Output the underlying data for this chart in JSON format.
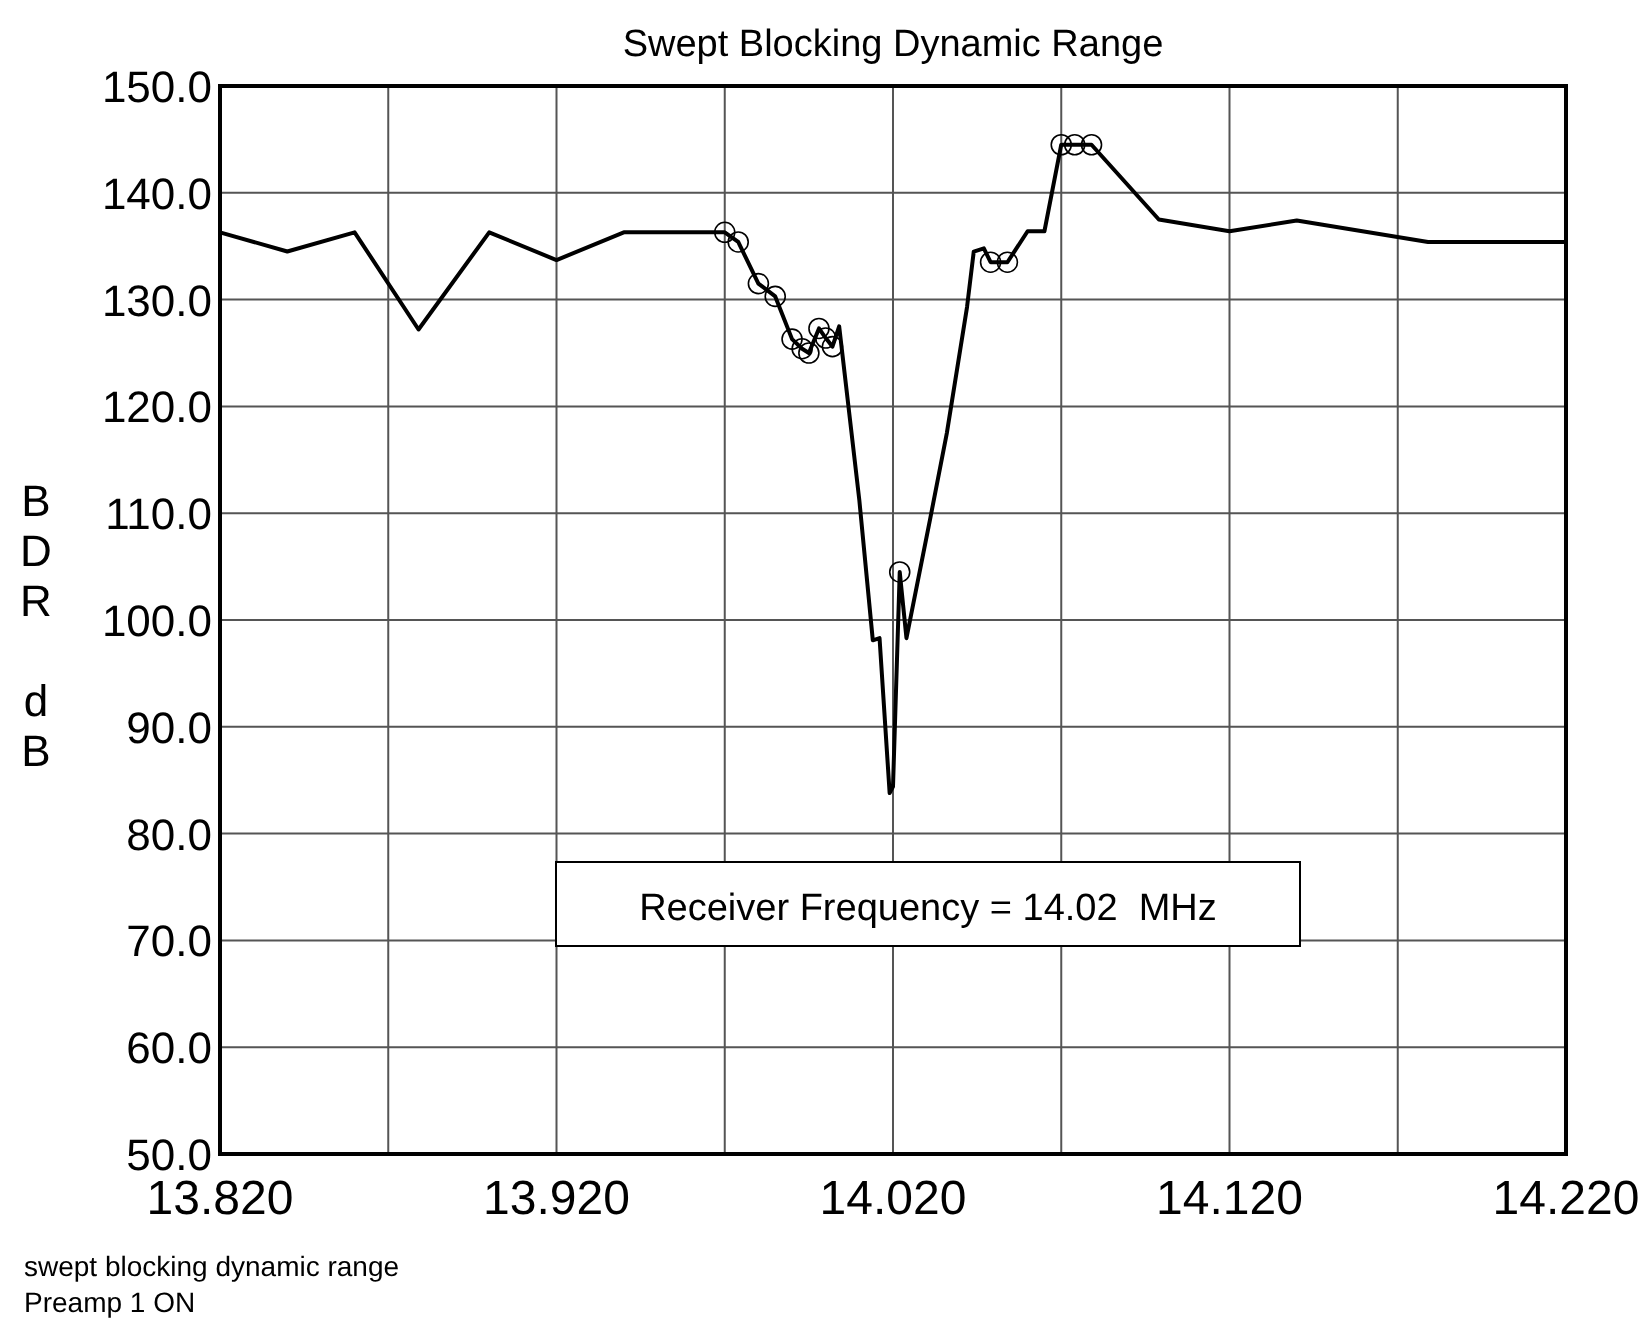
{
  "chart_data": {
    "type": "line",
    "title": "Swept Blocking Dynamic Range",
    "ylabel": "BDR dB",
    "annotations": [
      "Receiver Frequency = 14.02  MHz",
      "swept blocking dynamic range",
      "Preamp 1 ON"
    ],
    "xlim": [
      13.82,
      14.22
    ],
    "ylim": [
      50,
      150
    ],
    "xticks": [
      {
        "value": 13.82,
        "label": "13.820"
      },
      {
        "value": 13.87,
        "label": null
      },
      {
        "value": 13.92,
        "label": "13.920"
      },
      {
        "value": 13.97,
        "label": null
      },
      {
        "value": 14.02,
        "label": "14.020"
      },
      {
        "value": 14.07,
        "label": null
      },
      {
        "value": 14.12,
        "label": "14.120"
      },
      {
        "value": 14.17,
        "label": null
      },
      {
        "value": 14.22,
        "label": "14.220"
      }
    ],
    "yticks": [
      {
        "value": 50,
        "label": "50.0"
      },
      {
        "value": 60,
        "label": "60.0"
      },
      {
        "value": 70,
        "label": "70.0"
      },
      {
        "value": 80,
        "label": "80.0"
      },
      {
        "value": 90,
        "label": "90.0"
      },
      {
        "value": 100,
        "label": "100.0"
      },
      {
        "value": 110,
        "label": "110.0"
      },
      {
        "value": 120,
        "label": "120.0"
      },
      {
        "value": 130,
        "label": "130.0"
      },
      {
        "value": 140,
        "label": "140.0"
      },
      {
        "value": 150,
        "label": "150.0"
      }
    ],
    "grid": true,
    "series": [
      {
        "color": "#000000",
        "marker": "none",
        "x": [
          13.82,
          13.84,
          13.86,
          13.879,
          13.9,
          13.92,
          13.94,
          13.97,
          13.974,
          13.98,
          13.985,
          13.99,
          13.993,
          13.995,
          13.998,
          14.0,
          14.002,
          14.004,
          14.01,
          14.014,
          14.016,
          14.019,
          14.02,
          14.022,
          14.024,
          14.031,
          14.036,
          14.042,
          14.044,
          14.047,
          14.049,
          14.054,
          14.06,
          14.065,
          14.07,
          14.074,
          14.079,
          14.099,
          14.12,
          14.14,
          14.179,
          14.22
        ],
        "values": [
          136.3,
          134.5,
          136.3,
          127.2,
          136.3,
          133.7,
          136.3,
          136.3,
          135.4,
          131.5,
          130.3,
          126.3,
          125.4,
          125.0,
          127.3,
          126.4,
          125.6,
          127.5,
          111.2,
          98.1,
          98.3,
          83.8,
          84.4,
          104.5,
          98.3,
          109.4,
          117.5,
          129.3,
          134.5,
          134.8,
          133.5,
          133.5,
          136.4,
          136.4,
          144.5,
          144.5,
          144.5,
          137.5,
          136.4,
          137.4,
          135.4,
          135.4
        ]
      },
      {
        "type": "scatter",
        "color": "#000000",
        "marker": "circle",
        "x": [
          13.97,
          13.974,
          13.98,
          13.985,
          13.99,
          13.993,
          13.995,
          13.998,
          14.0,
          14.002,
          14.022,
          14.049,
          14.054,
          14.07,
          14.074,
          14.079
        ],
        "values": [
          136.3,
          135.4,
          131.5,
          130.3,
          126.3,
          125.4,
          125.0,
          127.3,
          126.4,
          125.6,
          104.5,
          133.5,
          133.5,
          144.5,
          144.5,
          144.5
        ]
      }
    ]
  }
}
